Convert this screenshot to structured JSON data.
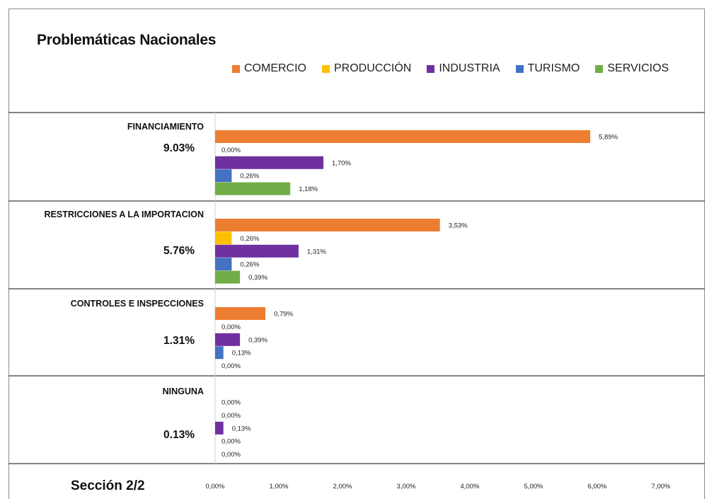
{
  "colors": {
    "COMERCIO": "#ed7d31",
    "PRODUCCIÓN": "#ffc000",
    "INDUSTRIA": "#7030a0",
    "TURISMO": "#4472c4",
    "SERVICIOS": "#70ad47"
  },
  "footer": "Sección 2/2",
  "chart_data": {
    "type": "bar",
    "orientation": "horizontal",
    "title": "Problemáticas Nacionales",
    "legend_position": "top",
    "series_names": [
      "COMERCIO",
      "PRODUCCIÓN",
      "INDUSTRIA",
      "TURISMO",
      "SERVICIOS"
    ],
    "categories": [
      {
        "label": "FINANCIAMIENTO",
        "total": "9.03%",
        "values": [
          5.89,
          0.0,
          1.7,
          0.26,
          1.18
        ],
        "value_labels": [
          "5,89%",
          "0,00%",
          "1,70%",
          "0,26%",
          "1,18%"
        ]
      },
      {
        "label": "RESTRICCIONES A LA IMPORTACION",
        "total": "5.76%",
        "values": [
          3.53,
          0.26,
          1.31,
          0.26,
          0.39
        ],
        "value_labels": [
          "3,53%",
          "0,26%",
          "1,31%",
          "0,26%",
          "0,39%"
        ]
      },
      {
        "label": "CONTROLES E INSPECCIONES",
        "total": "1.31%",
        "values": [
          0.79,
          0.0,
          0.39,
          0.13,
          0.0
        ],
        "value_labels": [
          "0,79%",
          "0,00%",
          "0,39%",
          "0,13%",
          "0,00%"
        ]
      },
      {
        "label": "NINGUNA",
        "total": "0.13%",
        "values": [
          0.0,
          0.0,
          0.13,
          0.0,
          0.0
        ],
        "value_labels": [
          "0,00%",
          "0,00%",
          "0,13%",
          "0,00%",
          "0,00%"
        ]
      }
    ],
    "xlim": [
      0,
      7
    ],
    "x_ticks": [
      0,
      1,
      2,
      3,
      4,
      5,
      6,
      7
    ],
    "x_tick_labels": [
      "0,00%",
      "1,00%",
      "2,00%",
      "3,00%",
      "4,00%",
      "5,00%",
      "6,00%",
      "7,00%"
    ],
    "grid": false
  }
}
